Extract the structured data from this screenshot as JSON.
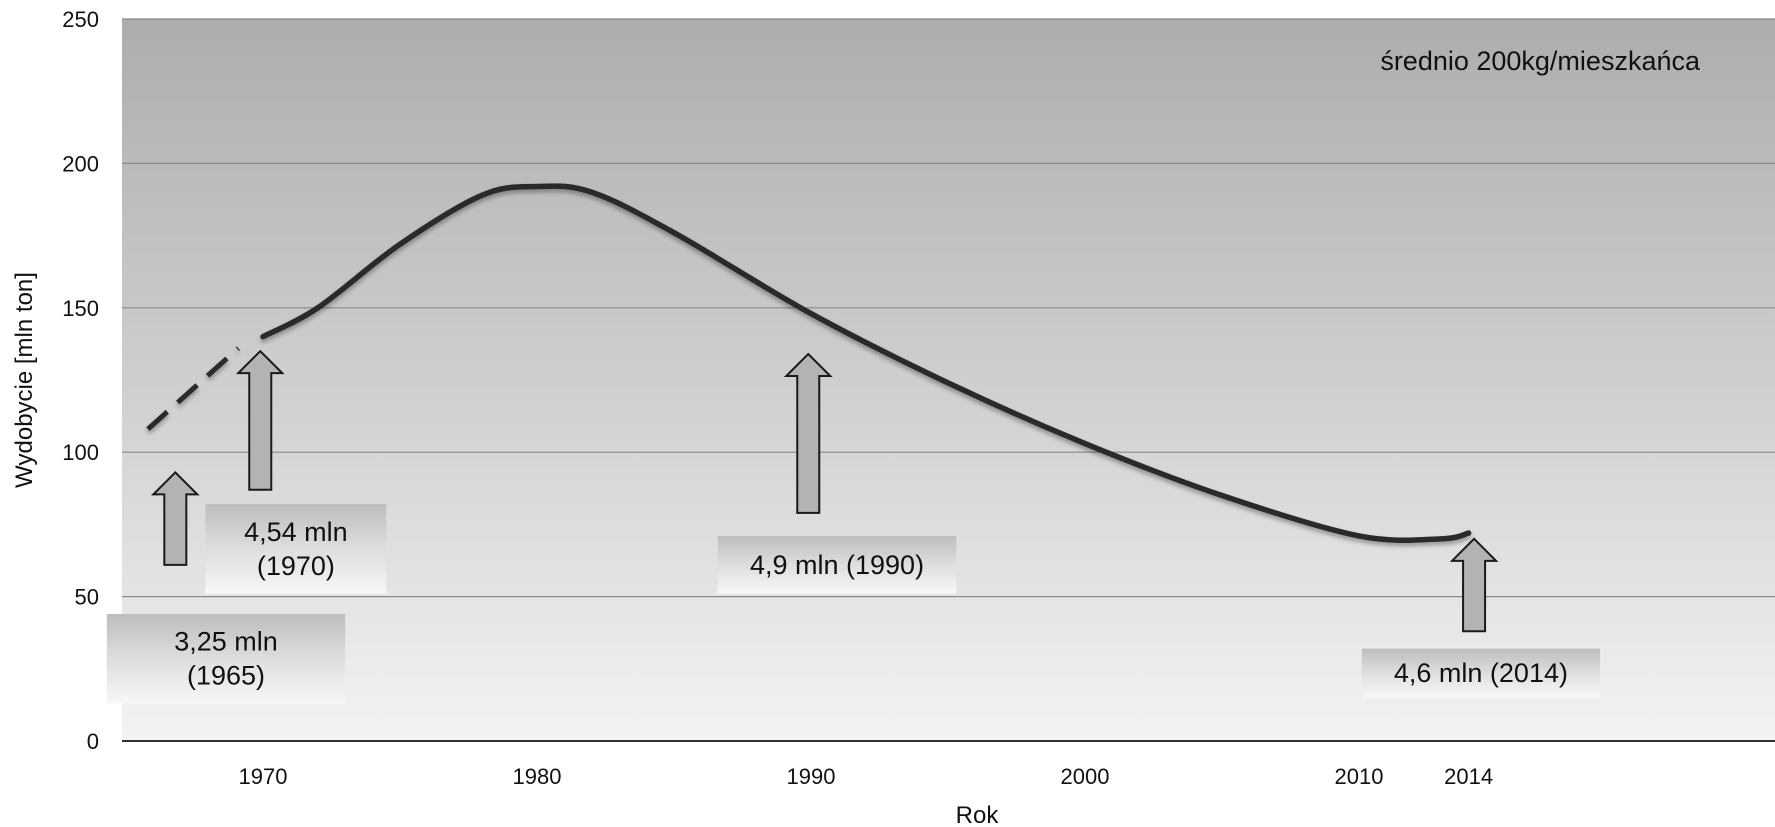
{
  "chart_data": {
    "type": "line",
    "xlabel": "Rok",
    "ylabel": "Wydobycie [mln ton]",
    "xlim": [
      1965,
      2020
    ],
    "ylim": [
      0,
      250
    ],
    "x_ticks": [
      1970,
      1980,
      1990,
      2000,
      2010,
      2014
    ],
    "y_ticks": [
      0,
      50,
      100,
      150,
      200,
      250
    ],
    "grid": true,
    "legend": "none",
    "note": "średnio 200kg/mieszkańca",
    "series": [
      {
        "style": "dashed",
        "x": [
          1965.8,
          1969.1
        ],
        "y": [
          108,
          136
        ]
      },
      {
        "style": "solid",
        "x": [
          1970,
          1972,
          1975,
          1978,
          1980,
          1982,
          1985,
          1990,
          1995,
          2000,
          2005,
          2010,
          2013,
          2014
        ],
        "y": [
          140,
          150,
          172,
          189,
          192,
          190,
          176,
          148,
          124,
          103,
          85,
          71,
          70,
          72
        ]
      }
    ],
    "annotations": [
      {
        "lines": [
          "3,25 mln",
          "(1965)"
        ],
        "box_x": 1964.3,
        "box_w": 8.7,
        "box_y": [
          13,
          44
        ],
        "arrow_x": 1966.8,
        "arrow_y": [
          61,
          93
        ]
      },
      {
        "lines": [
          "4,54 mln",
          "(1970)"
        ],
        "box_x": 1967.9,
        "box_w": 6.6,
        "box_y": [
          51,
          82
        ],
        "arrow_x": 1969.9,
        "arrow_y": [
          87,
          135
        ]
      },
      {
        "lines": [
          "4,9 mln (1990)"
        ],
        "box_x": 1986.6,
        "box_w": 8.7,
        "box_y": [
          51,
          71
        ],
        "arrow_x": 1989.9,
        "arrow_y": [
          79,
          134
        ]
      },
      {
        "lines": [
          "4,6 mln (2014)"
        ],
        "box_x": 2010.1,
        "box_w": 8.7,
        "box_y": [
          15,
          32
        ],
        "arrow_x": 2014.2,
        "arrow_y": [
          38,
          70
        ]
      }
    ]
  }
}
